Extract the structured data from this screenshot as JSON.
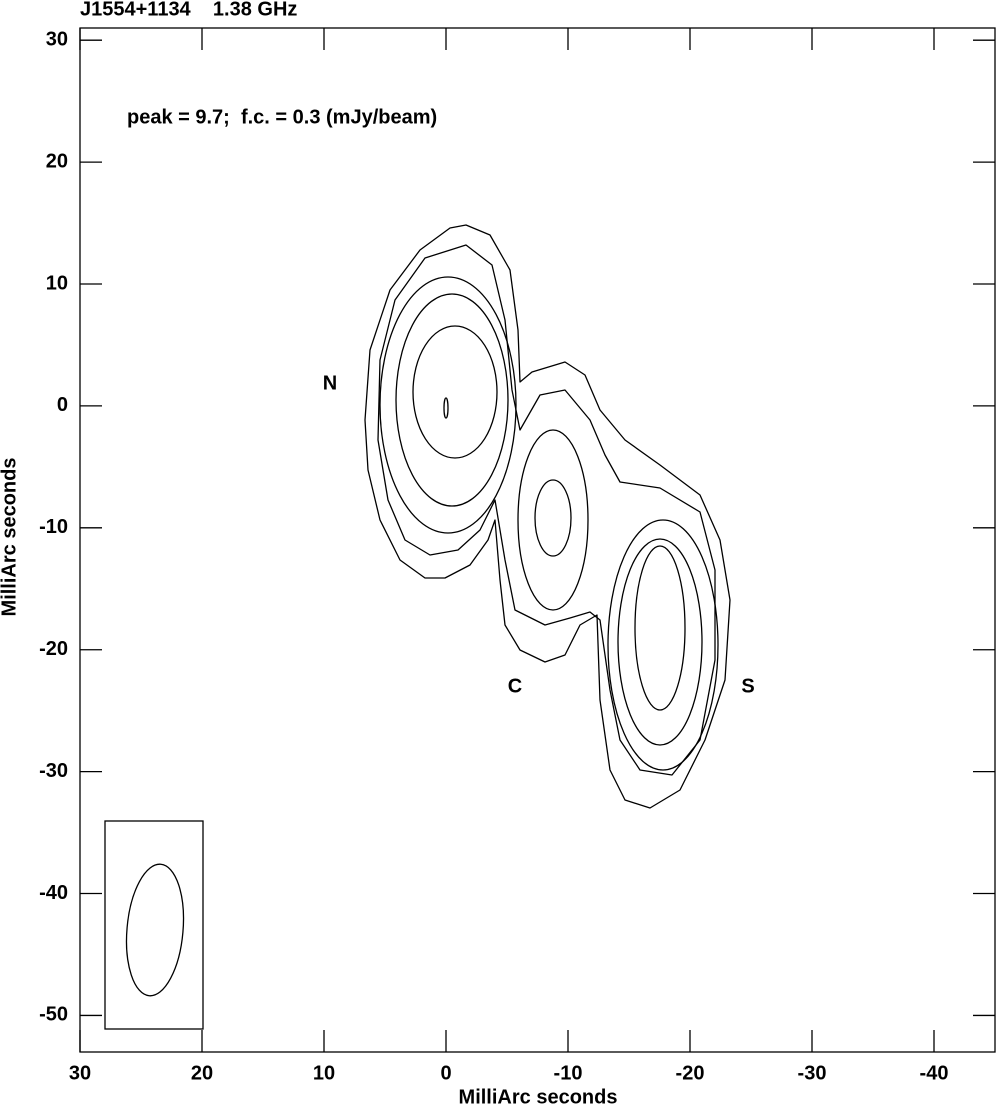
{
  "chart_data": {
    "type": "contour",
    "title": "J1554+1134    1.38 GHz",
    "annotation": "peak = 9.7;  f.c. = 0.3 (mJy/beam)",
    "component_labels": [
      "N",
      "C",
      "S"
    ],
    "x_label": "MilliArc seconds",
    "y_label": "MilliArc seconds",
    "xlim": [
      30,
      -45
    ],
    "ylim": [
      -53,
      31
    ],
    "xticks": [
      30,
      20,
      10,
      0,
      -10,
      -20,
      -30,
      -40
    ],
    "yticks": [
      30,
      20,
      10,
      0,
      -10,
      -20,
      -30,
      -40,
      -50
    ]
  }
}
